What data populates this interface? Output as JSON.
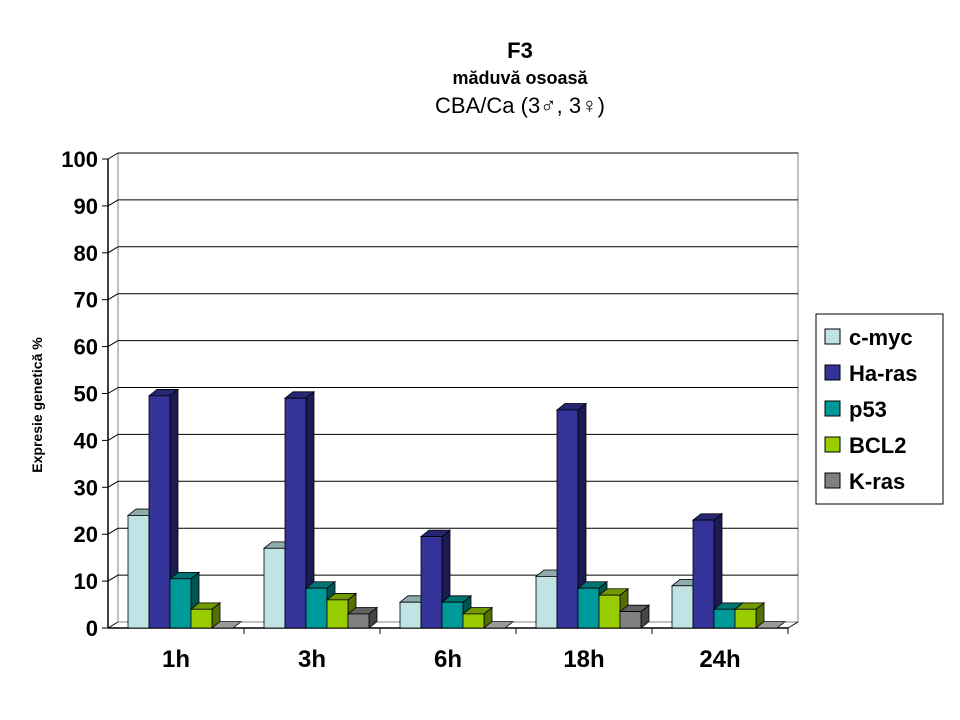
{
  "chart_data": {
    "type": "bar",
    "title": "F3",
    "subtitle": "măduvă osoasă",
    "subtitle2": "CBA/Ca (3♂, 3♀)",
    "xlabel": "",
    "ylabel": "Expresie genetică %",
    "ylim": [
      0,
      100
    ],
    "yticks": [
      "0",
      "10",
      "20",
      "30",
      "40",
      "50",
      "60",
      "70",
      "80",
      "90",
      "100"
    ],
    "categories": [
      "1h",
      "3h",
      "6h",
      "18h",
      "24h"
    ],
    "grid": true,
    "legend_position": "right",
    "series": [
      {
        "name": "c-myc",
        "color": "#c0e4e6",
        "values": [
          24,
          17,
          5.5,
          11,
          9
        ]
      },
      {
        "name": "Ha-ras",
        "color": "#333399",
        "values": [
          49.5,
          49,
          19.5,
          46.5,
          23
        ]
      },
      {
        "name": "p53",
        "color": "#009999",
        "values": [
          10.5,
          8.5,
          5.5,
          8.5,
          4
        ]
      },
      {
        "name": "BCL2",
        "color": "#99cc00",
        "values": [
          4,
          6,
          3,
          7,
          4
        ]
      },
      {
        "name": "K-ras",
        "color": "#808080",
        "values": [
          0,
          3,
          0,
          3.5,
          0
        ]
      }
    ]
  }
}
